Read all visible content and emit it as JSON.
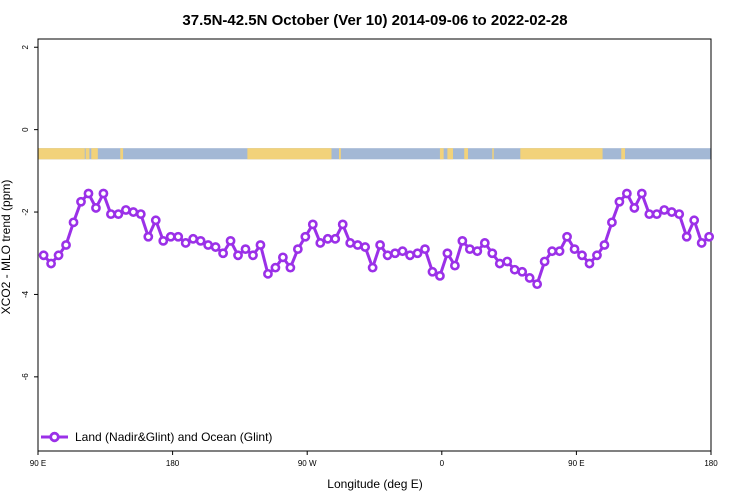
{
  "chart_data": {
    "type": "line",
    "title": "37.5N-42.5N October (Ver 10)   2014-09-06 to 2022-02-28",
    "xlabel": "Longitude (deg E)",
    "ylabel": "XCO2 - MLO trend (ppm)",
    "xlim": [
      90,
      450
    ],
    "ylim": [
      -7.8,
      2.2
    ],
    "x_ticks": [
      {
        "value": 90,
        "label": "90 E"
      },
      {
        "value": 162,
        "label": "180"
      },
      {
        "value": 234,
        "label": "90 W"
      },
      {
        "value": 306,
        "label": "0"
      },
      {
        "value": 378,
        "label": "90 E"
      },
      {
        "value": 450,
        "label": "180"
      }
    ],
    "y_ticks": [
      {
        "value": 2,
        "label": "2"
      },
      {
        "value": 0,
        "label": "0"
      },
      {
        "value": -2,
        "label": "-2"
      },
      {
        "value": -4,
        "label": "-4"
      },
      {
        "value": -6,
        "label": "-6"
      }
    ],
    "grid": false,
    "legend_position": "bottom-left",
    "land_ocean_strip": {
      "y_range": [
        -0.72,
        -0.45
      ],
      "ocean_color": "#a3b8d5",
      "land_color": "#f2d27a",
      "land_segments": [
        [
          90,
          115
        ],
        [
          115.5,
          117.5
        ],
        [
          118.5,
          122
        ],
        [
          134,
          135.5
        ],
        [
          202,
          247
        ],
        [
          251,
          252
        ],
        [
          305,
          307
        ],
        [
          309,
          312
        ],
        [
          318,
          320
        ],
        [
          333,
          333.8
        ],
        [
          348,
          392
        ],
        [
          402,
          404
        ]
      ]
    },
    "series": [
      {
        "name": "Land (Nadir&Glint) and Ocean (Glint)",
        "color": "#9b30e8",
        "x": [
          93,
          97,
          101,
          105,
          109,
          113,
          117,
          121,
          125,
          129,
          133,
          137,
          141,
          145,
          149,
          153,
          157,
          161,
          165,
          169,
          173,
          177,
          181,
          185,
          189,
          193,
          197,
          201,
          205,
          209,
          213,
          217,
          221,
          225,
          229,
          233,
          237,
          241,
          245,
          249,
          253,
          257,
          261,
          265,
          269,
          273,
          277,
          281,
          285,
          289,
          293,
          297,
          301,
          305,
          309,
          313,
          317,
          321,
          325,
          329,
          333,
          337,
          341,
          345,
          349,
          353,
          357,
          361,
          365,
          369,
          373,
          377,
          381,
          385,
          389,
          393,
          397,
          401,
          405,
          409,
          413,
          417,
          421,
          425,
          429,
          433,
          437,
          441,
          445,
          449
        ],
        "y": [
          -3.05,
          -3.25,
          -3.05,
          -2.8,
          -2.25,
          -1.75,
          -1.55,
          -1.9,
          -1.55,
          -2.05,
          -2.05,
          -1.95,
          -2.0,
          -2.05,
          -2.6,
          -2.2,
          -2.7,
          -2.6,
          -2.6,
          -2.75,
          -2.65,
          -2.7,
          -2.8,
          -2.85,
          -3.0,
          -2.7,
          -3.05,
          -2.9,
          -3.05,
          -2.8,
          -3.5,
          -3.35,
          -3.1,
          -3.35,
          -2.9,
          -2.6,
          -2.3,
          -2.75,
          -2.65,
          -2.65,
          -2.3,
          -2.75,
          -2.8,
          -2.85,
          -3.35,
          -2.8,
          -3.05,
          -3.0,
          -2.95,
          -3.05,
          -3.0,
          -2.9,
          -3.45,
          -3.55,
          -3.0,
          -3.3,
          -2.7,
          -2.9,
          -2.95,
          -2.75,
          -3.0,
          -3.25,
          -3.2,
          -3.4,
          -3.45,
          -3.6,
          -3.75,
          -3.2,
          -2.95,
          -2.95,
          -2.6,
          -2.9,
          -3.05,
          -3.25,
          -3.05,
          -2.8,
          -2.25,
          -1.75,
          -1.55,
          -1.9,
          -1.55,
          -2.05,
          -2.05,
          -1.95,
          -2.0,
          -2.05,
          -2.6,
          -2.2,
          -2.75,
          -2.6
        ]
      }
    ]
  }
}
